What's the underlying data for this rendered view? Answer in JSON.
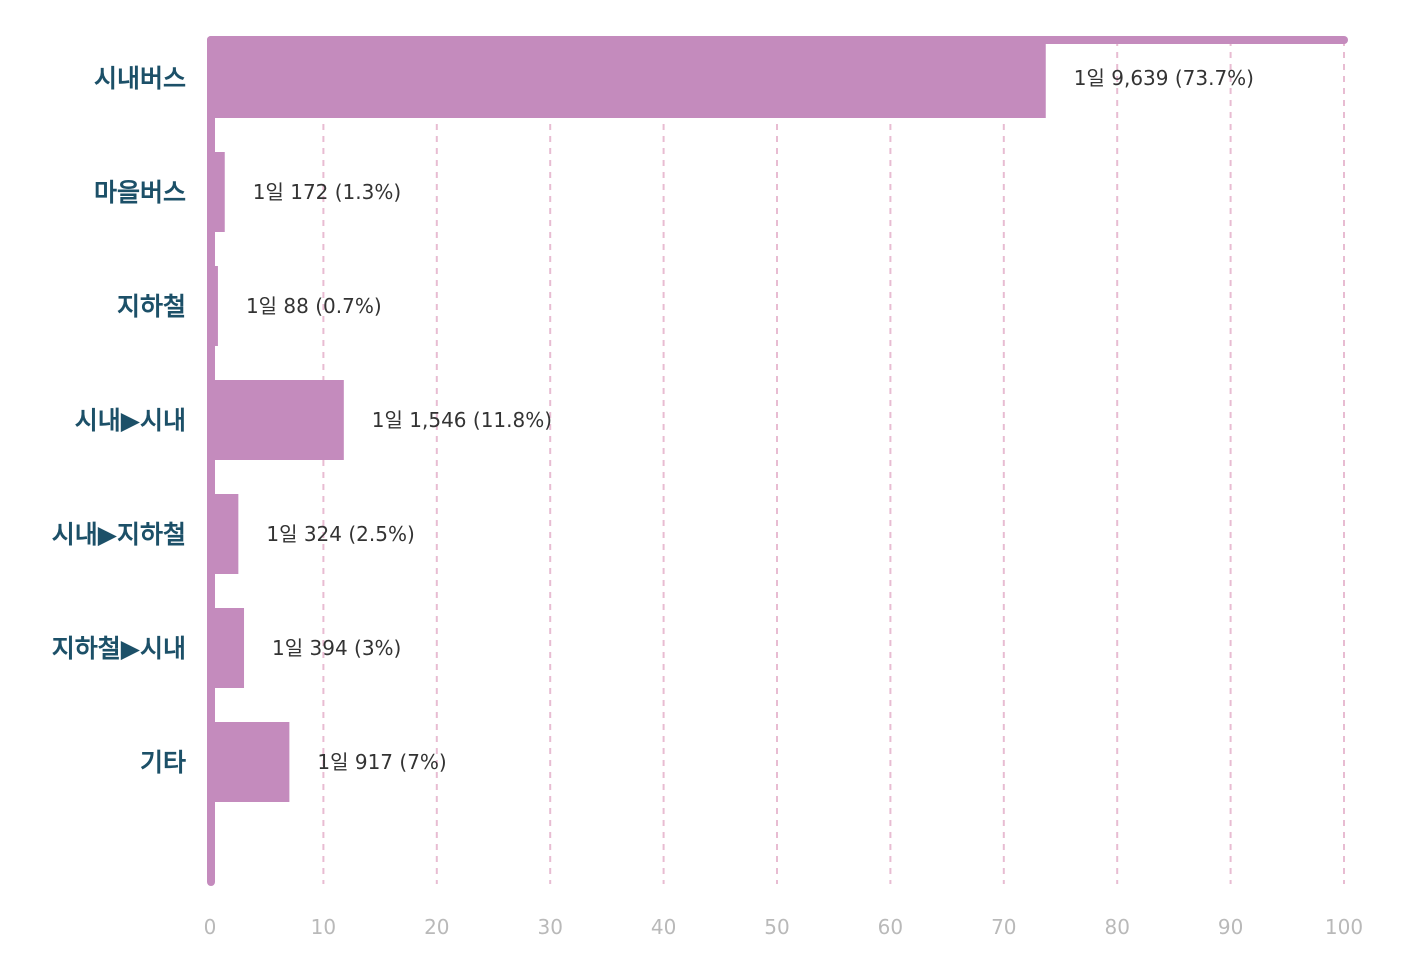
{
  "chart_data": {
    "type": "bar",
    "orientation": "horizontal",
    "categories": [
      "시내버스",
      "마을버스",
      "지하철",
      "시내▶시내",
      "시내▶지하철",
      "지하철▶시내",
      "기타"
    ],
    "values": [
      73.7,
      1.3,
      0.7,
      11.8,
      2.5,
      3,
      7
    ],
    "data_labels": [
      "1일 9,639 (73.7%)",
      "1일 172 (1.3%)",
      "1일 88 (0.7%)",
      "1일 1,546 (11.8%)",
      "1일 324 (2.5%)",
      "1일 394 (3%)",
      "1일 917 (7%)"
    ],
    "title": "",
    "xlabel": "",
    "ylabel": "",
    "xlim": [
      0,
      100
    ],
    "x_ticks": [
      0,
      10,
      20,
      30,
      40,
      50,
      60,
      70,
      80,
      90,
      100
    ],
    "grid": "vertical-dashed",
    "colors": {
      "bar": "#c48bbd",
      "grid": "#e8bcd2",
      "category_text": "#1c5068",
      "value_text": "#333333",
      "tick_text": "#b9b9b9"
    }
  }
}
